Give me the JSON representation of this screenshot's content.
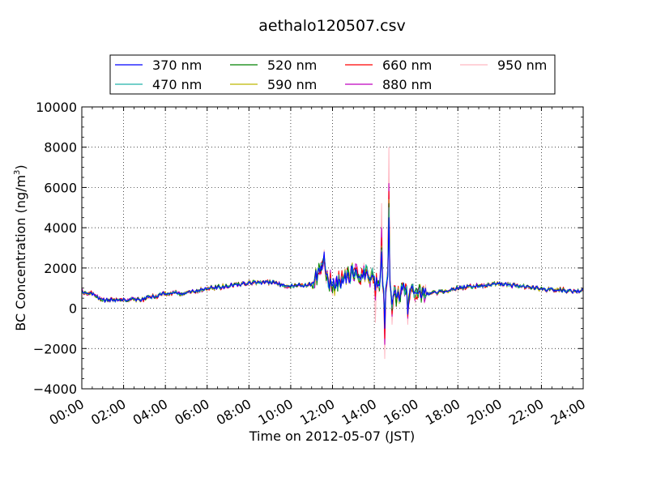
{
  "chart_data": {
    "type": "line",
    "title": "aethalo120507.csv",
    "xlabel": "Time on 2012-05-07 (JST)",
    "ylabel_main": "BC Concentration (ng/m",
    "ylabel_sup": "3",
    "ylabel_close": ")",
    "ylim": [
      -4000,
      10000
    ],
    "xlim": [
      "00:00",
      "24:00"
    ],
    "grid": true,
    "legend_position": "top",
    "x_ticks": [
      "00:00",
      "02:00",
      "04:00",
      "06:00",
      "08:00",
      "10:00",
      "12:00",
      "14:00",
      "16:00",
      "18:00",
      "20:00",
      "22:00",
      "24:00"
    ],
    "y_ticks": [
      "−4000",
      "−2000",
      "0",
      "2000",
      "4000",
      "6000",
      "8000",
      "10000"
    ],
    "series": [
      {
        "name": "370 nm",
        "color": "#0000ff"
      },
      {
        "name": "470 nm",
        "color": "#20b2aa"
      },
      {
        "name": "520 nm",
        "color": "#008000"
      },
      {
        "name": "590 nm",
        "color": "#bdb700"
      },
      {
        "name": "660 nm",
        "color": "#ff0000"
      },
      {
        "name": "880 nm",
        "color": "#bf00bf"
      },
      {
        "name": "950 nm",
        "color": "#ffb6c1"
      }
    ],
    "base_profile_hours": [
      0,
      0.5,
      1,
      2,
      3,
      4,
      5,
      6,
      7,
      8,
      9,
      10,
      11,
      11.5,
      12,
      13,
      14,
      14.5,
      15,
      15.5,
      16,
      17,
      18,
      19,
      20,
      21,
      22,
      23,
      24
    ],
    "base_profile_values": [
      850,
      700,
      400,
      430,
      450,
      750,
      750,
      1000,
      1100,
      1250,
      1300,
      1100,
      1200,
      2000,
      1100,
      1800,
      1500,
      1000,
      600,
      900,
      700,
      800,
      1000,
      1100,
      1200,
      1100,
      950,
      900,
      850
    ],
    "spikes": [
      {
        "hour": 14.05,
        "values": [
          900,
          900,
          900,
          900,
          600,
          400,
          -700
        ]
      },
      {
        "hour": 14.35,
        "values": [
          2800,
          2900,
          3000,
          3100,
          3500,
          4000,
          5200
        ]
      },
      {
        "hour": 14.5,
        "values": [
          -1000,
          -800,
          -900,
          -700,
          -1500,
          -1800,
          -2500
        ]
      },
      {
        "hour": 14.7,
        "values": [
          4500,
          5000,
          5200,
          5400,
          5800,
          6200,
          8000
        ]
      },
      {
        "hour": 14.85,
        "values": [
          200,
          0,
          -100,
          100,
          -300,
          -400,
          -800
        ]
      },
      {
        "hour": 11.6,
        "values": [
          2800,
          2600,
          2600,
          2500,
          2400,
          2500,
          2900
        ]
      },
      {
        "hour": 15.6,
        "values": [
          -300,
          -200,
          -300,
          -200,
          -400,
          -500,
          -800
        ]
      }
    ]
  }
}
